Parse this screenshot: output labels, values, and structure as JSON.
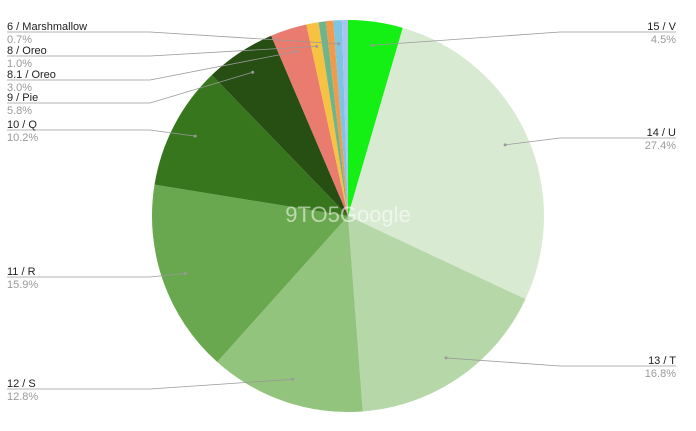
{
  "chart_data": {
    "type": "pie",
    "title": "",
    "watermark": "9TO5Google",
    "start": "top",
    "direction": "clockwise",
    "slices": [
      {
        "label": "15 / V",
        "percent_label": "4.5%",
        "value": 4.5,
        "color": "#14f014",
        "side": "right"
      },
      {
        "label": "14 / U",
        "percent_label": "27.4%",
        "value": 27.4,
        "color": "#d9ead3",
        "side": "right"
      },
      {
        "label": "13 / T",
        "percent_label": "16.8%",
        "value": 16.8,
        "color": "#b6d7a8",
        "side": "right"
      },
      {
        "label": "12 / S",
        "percent_label": "12.8%",
        "value": 12.8,
        "color": "#93c47d",
        "side": "left"
      },
      {
        "label": "11 / R",
        "percent_label": "15.9%",
        "value": 15.9,
        "color": "#6aa84f",
        "side": "left"
      },
      {
        "label": "10 / Q",
        "percent_label": "10.2%",
        "value": 10.2,
        "color": "#38761d",
        "side": "left"
      },
      {
        "label": "9 / Pie",
        "percent_label": "5.8%",
        "value": 5.8,
        "color": "#274e13",
        "side": "left"
      },
      {
        "label": "8.1 / Oreo",
        "percent_label": "3.0%",
        "value": 3.0,
        "color": "#ea7b6f",
        "side": "left"
      },
      {
        "label": "8 / Oreo",
        "percent_label": "1.0%",
        "value": 1.0,
        "color": "#f7c242",
        "side": "left"
      },
      {
        "label": "",
        "percent_label": "",
        "value": 0.6,
        "color": "#6fb58b"
      },
      {
        "label": "",
        "percent_label": "",
        "value": 0.6,
        "color": "#f29a4b"
      },
      {
        "label": "6 / Marshmallow",
        "percent_label": "0.7%",
        "value": 0.7,
        "color": "#7ec5e2",
        "side": "left"
      },
      {
        "label": "",
        "percent_label": "",
        "value": 0.5,
        "color": "#a8c4f2"
      }
    ],
    "legend": "none (leader-line labels)"
  }
}
